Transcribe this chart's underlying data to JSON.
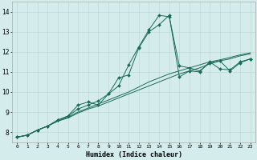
{
  "xlabel": "Humidex (Indice chaleur)",
  "bg_color": "#d4ecec",
  "grid_color": "#c0d8d8",
  "line_color": "#1a6b5a",
  "xlim": [
    -0.5,
    23.5
  ],
  "ylim": [
    7.5,
    14.5
  ],
  "xtick_labels": [
    "0",
    "1",
    "2",
    "3",
    "4",
    "5",
    "6",
    "7",
    "8",
    "9",
    "10",
    "11",
    "12",
    "13",
    "14",
    "15",
    "16",
    "17",
    "18",
    "19",
    "20",
    "21",
    "22",
    "23"
  ],
  "ytick_labels": [
    "8",
    "9",
    "10",
    "11",
    "12",
    "13",
    "14"
  ],
  "ytick_vals": [
    8,
    9,
    10,
    11,
    12,
    13,
    14
  ],
  "series": [
    {
      "x": [
        0,
        1,
        2,
        3,
        4,
        5,
        6,
        7,
        8,
        9,
        10,
        11,
        12,
        13,
        14,
        15,
        16,
        17,
        18,
        19,
        20,
        21,
        22,
        23
      ],
      "y": [
        7.75,
        7.85,
        8.1,
        8.3,
        8.55,
        8.7,
        8.95,
        9.15,
        9.3,
        9.5,
        9.7,
        9.9,
        10.1,
        10.3,
        10.5,
        10.7,
        10.9,
        11.05,
        11.2,
        11.4,
        11.55,
        11.65,
        11.8,
        11.9
      ],
      "markers": false
    },
    {
      "x": [
        0,
        1,
        2,
        3,
        4,
        5,
        6,
        7,
        8,
        9,
        10,
        11,
        12,
        13,
        14,
        15,
        16,
        17,
        18,
        19,
        20,
        21,
        22,
        23
      ],
      "y": [
        7.75,
        7.85,
        8.1,
        8.3,
        8.55,
        8.75,
        9.0,
        9.2,
        9.4,
        9.6,
        9.8,
        10.0,
        10.25,
        10.5,
        10.7,
        10.9,
        11.05,
        11.2,
        11.35,
        11.5,
        11.6,
        11.72,
        11.85,
        11.95
      ],
      "markers": false
    },
    {
      "x": [
        0,
        1,
        2,
        3,
        4,
        5,
        6,
        7,
        8,
        9,
        10,
        11,
        12,
        13,
        14,
        15,
        16,
        17,
        18,
        19,
        20,
        21,
        22,
        23
      ],
      "y": [
        7.75,
        7.85,
        8.1,
        8.3,
        8.6,
        8.8,
        9.35,
        9.5,
        9.35,
        9.9,
        10.7,
        10.85,
        12.2,
        13.0,
        13.35,
        13.82,
        10.75,
        11.05,
        11.0,
        11.5,
        11.15,
        11.1,
        11.5,
        11.65
      ],
      "markers": true
    },
    {
      "x": [
        0,
        1,
        2,
        3,
        4,
        5,
        6,
        7,
        8,
        9,
        10,
        11,
        12,
        13,
        14,
        15,
        16,
        17,
        18,
        19,
        20,
        21,
        22,
        23
      ],
      "y": [
        7.75,
        7.85,
        8.1,
        8.3,
        8.6,
        8.8,
        9.15,
        9.35,
        9.55,
        9.9,
        10.3,
        11.35,
        12.25,
        13.1,
        13.82,
        13.75,
        11.3,
        11.2,
        11.05,
        11.45,
        11.55,
        11.05,
        11.45,
        11.65
      ],
      "markers": true
    }
  ]
}
